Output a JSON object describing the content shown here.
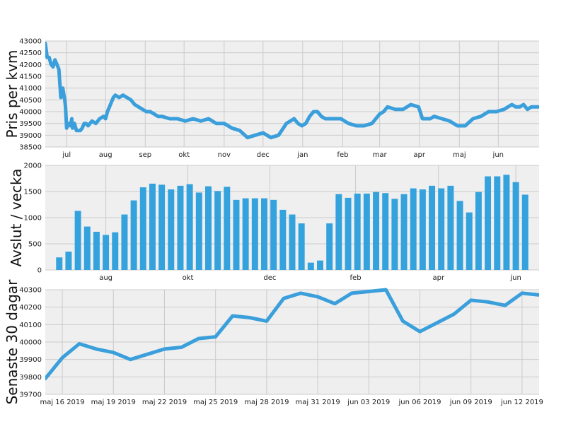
{
  "colors": {
    "series": "#34a2dc",
    "plot_bg": "#efefef",
    "grid": "#cbcbcb"
  },
  "chart_data": [
    {
      "type": "line",
      "ylabel": "Pris per kvm",
      "ylim": [
        38500,
        43000
      ],
      "yticks": [
        38500,
        39000,
        39500,
        40000,
        40500,
        41000,
        41500,
        42000,
        42500,
        43000
      ],
      "xlim": [
        0,
        12.7
      ],
      "xticks": [
        {
          "pos": 0.55,
          "label": "jul"
        },
        {
          "pos": 1.55,
          "label": "aug"
        },
        {
          "pos": 2.57,
          "label": "sep"
        },
        {
          "pos": 3.57,
          "label": "okt"
        },
        {
          "pos": 4.6,
          "label": "nov"
        },
        {
          "pos": 5.6,
          "label": "dec"
        },
        {
          "pos": 6.62,
          "label": "jan"
        },
        {
          "pos": 7.65,
          "label": "feb"
        },
        {
          "pos": 8.6,
          "label": "mar"
        },
        {
          "pos": 9.62,
          "label": "apr"
        },
        {
          "pos": 10.65,
          "label": "maj"
        },
        {
          "pos": 11.65,
          "label": "jun"
        }
      ],
      "grid": true,
      "series": [
        {
          "x": [
            0,
            0.05,
            0.1,
            0.15,
            0.2,
            0.25,
            0.3,
            0.35,
            0.4,
            0.45,
            0.5,
            0.52,
            0.55,
            0.6,
            0.65,
            0.68,
            0.7,
            0.75,
            0.8,
            0.85,
            0.9,
            0.95,
            1.0,
            1.05,
            1.1,
            1.15,
            1.2,
            1.3,
            1.4,
            1.5,
            1.55,
            1.6,
            1.65,
            1.7,
            1.75,
            1.8,
            1.9,
            2.0,
            2.1,
            2.2,
            2.3,
            2.4,
            2.5,
            2.6,
            2.7,
            2.8,
            2.9,
            3.0,
            3.2,
            3.4,
            3.6,
            3.8,
            4.0,
            4.2,
            4.4,
            4.6,
            4.8,
            5.0,
            5.2,
            5.4,
            5.6,
            5.7,
            5.8,
            6.0,
            6.2,
            6.4,
            6.5,
            6.6,
            6.7,
            6.8,
            6.9,
            7.0,
            7.1,
            7.2,
            7.4,
            7.6,
            7.8,
            8.0,
            8.2,
            8.4,
            8.6,
            8.7,
            8.8,
            9.0,
            9.2,
            9.4,
            9.6,
            9.7,
            9.8,
            9.9,
            10.0,
            10.2,
            10.4,
            10.5,
            10.6,
            10.8,
            11.0,
            11.2,
            11.4,
            11.6,
            11.8,
            11.9,
            12.0,
            12.1,
            12.2,
            12.3,
            12.4,
            12.5,
            12.6,
            12.7
          ],
          "y": [
            42900,
            42300,
            42300,
            42000,
            41900,
            42200,
            42000,
            41800,
            40600,
            41000,
            40500,
            40200,
            39300,
            39500,
            39400,
            39700,
            39300,
            39500,
            39200,
            39200,
            39200,
            39300,
            39500,
            39500,
            39400,
            39500,
            39600,
            39500,
            39700,
            39800,
            39700,
            40000,
            40200,
            40400,
            40600,
            40700,
            40600,
            40700,
            40600,
            40500,
            40300,
            40200,
            40100,
            40000,
            40000,
            39900,
            39800,
            39800,
            39700,
            39700,
            39600,
            39700,
            39600,
            39700,
            39500,
            39500,
            39300,
            39200,
            38900,
            39000,
            39100,
            39000,
            38900,
            39000,
            39500,
            39700,
            39500,
            39400,
            39500,
            39800,
            40000,
            40000,
            39800,
            39700,
            39700,
            39700,
            39500,
            39400,
            39400,
            39500,
            39900,
            40000,
            40200,
            40100,
            40100,
            40300,
            40200,
            39700,
            39700,
            39700,
            39800,
            39700,
            39600,
            39500,
            39400,
            39400,
            39700,
            39800,
            40000,
            40000,
            40100,
            40200,
            40300,
            40200,
            40200,
            40300,
            40100,
            40200,
            40200,
            40200
          ]
        }
      ]
    },
    {
      "type": "bar",
      "ylabel": "Avslut / vecka",
      "ylim": [
        0,
        2000
      ],
      "yticks": [
        0,
        500,
        1000,
        1500,
        2000
      ],
      "xlim": [
        0,
        53
      ],
      "xticks": [
        {
          "pos": 6.5,
          "label": "aug"
        },
        {
          "pos": 15.3,
          "label": "okt"
        },
        {
          "pos": 24.1,
          "label": "dec"
        },
        {
          "pos": 33.3,
          "label": "feb"
        },
        {
          "pos": 42.2,
          "label": "apr"
        },
        {
          "pos": 50.5,
          "label": "jun"
        }
      ],
      "grid": true,
      "values": [
        0,
        240,
        350,
        1130,
        830,
        730,
        670,
        720,
        1060,
        1330,
        1580,
        1650,
        1630,
        1540,
        1610,
        1640,
        1480,
        1600,
        1510,
        1590,
        1340,
        1370,
        1370,
        1370,
        1340,
        1150,
        1060,
        890,
        140,
        180,
        890,
        1450,
        1380,
        1460,
        1460,
        1490,
        1470,
        1360,
        1450,
        1560,
        1540,
        1610,
        1560,
        1610,
        1320,
        1100,
        1490,
        1790,
        1790,
        1820,
        1680,
        1440
      ]
    },
    {
      "type": "line",
      "ylabel": "Senaste 30 dagar",
      "ylim": [
        39700,
        40300
      ],
      "yticks": [
        39700,
        39800,
        39900,
        40000,
        40100,
        40200,
        40300
      ],
      "xlim": [
        0,
        29
      ],
      "xticks": [
        {
          "pos": 1,
          "label": "maj 16 2019"
        },
        {
          "pos": 4,
          "label": "maj 19 2019"
        },
        {
          "pos": 7,
          "label": "maj 22 2019"
        },
        {
          "pos": 10,
          "label": "maj 25 2019"
        },
        {
          "pos": 13,
          "label": "maj 28 2019"
        },
        {
          "pos": 16,
          "label": "maj 31 2019"
        },
        {
          "pos": 19,
          "label": "jun 03 2019"
        },
        {
          "pos": 22,
          "label": "jun 06 2019"
        },
        {
          "pos": 25,
          "label": "jun 09 2019"
        },
        {
          "pos": 28,
          "label": "jun 12 2019"
        }
      ],
      "grid": true,
      "series": [
        {
          "x": [
            0,
            1,
            2,
            3,
            4,
            5,
            6,
            7,
            8,
            9,
            10,
            11,
            12,
            13,
            14,
            15,
            16,
            17,
            18,
            19,
            20,
            21,
            22,
            23,
            24,
            25,
            26,
            27,
            28,
            29
          ],
          "y": [
            39790,
            39910,
            39990,
            39960,
            39940,
            39900,
            39930,
            39960,
            39970,
            40020,
            40030,
            40150,
            40140,
            40120,
            40250,
            40280,
            40260,
            40220,
            40280,
            40290,
            40300,
            40120,
            40060,
            40110,
            40160,
            40240,
            40230,
            40210,
            40280,
            40270
          ]
        }
      ]
    }
  ]
}
